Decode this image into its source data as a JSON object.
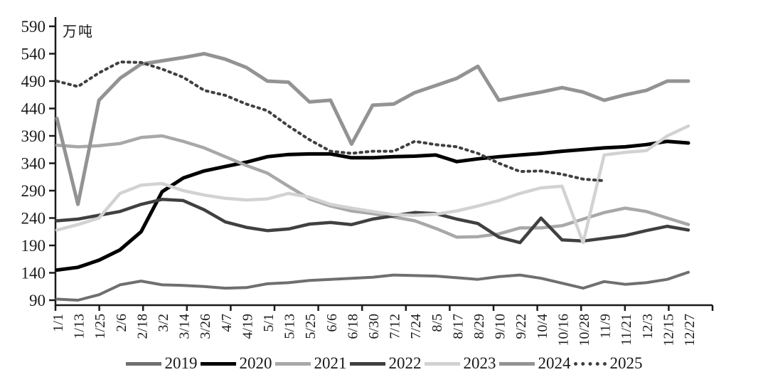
{
  "unit_label": "万吨",
  "chart_data": {
    "type": "line",
    "title": "",
    "ylabel": "万吨",
    "xlabel": "",
    "ylim": [
      90,
      590
    ],
    "yticks": [
      90,
      140,
      190,
      240,
      290,
      340,
      390,
      440,
      490,
      540,
      590
    ],
    "grid": false,
    "legend_position": "bottom",
    "categories": [
      "1/1",
      "1/13",
      "1/25",
      "2/6",
      "2/18",
      "3/2",
      "3/14",
      "3/26",
      "4/7",
      "4/19",
      "5/1",
      "5/13",
      "5/25",
      "6/6",
      "6/18",
      "6/30",
      "7/12",
      "7/24",
      "8/5",
      "8/17",
      "8/29",
      "9/10",
      "9/22",
      "10/4",
      "10/16",
      "10/28",
      "11/9",
      "11/21",
      "12/3",
      "12/15",
      "12/27"
    ],
    "series": [
      {
        "name": "2019",
        "color": "#6f6f6f",
        "width": 4,
        "style": "solid",
        "values": [
          92,
          90,
          100,
          118,
          125,
          118,
          117,
          115,
          112,
          113,
          120,
          122,
          126,
          128,
          130,
          132,
          136,
          135,
          134,
          131,
          128,
          133,
          136,
          130,
          121,
          112,
          124,
          119,
          122,
          128,
          141
        ]
      },
      {
        "name": "2020",
        "color": "#000000",
        "width": 5,
        "style": "solid",
        "values": [
          145,
          150,
          163,
          182,
          215,
          288,
          313,
          326,
          334,
          342,
          352,
          356,
          357,
          357,
          350,
          350,
          352,
          353,
          355,
          343,
          348,
          352,
          355,
          358,
          362,
          365,
          368,
          370,
          374,
          380,
          377
        ]
      },
      {
        "name": "2021",
        "color": "#a8a8a8",
        "width": 4.5,
        "style": "solid",
        "values": [
          373,
          370,
          372,
          376,
          387,
          390,
          380,
          368,
          352,
          336,
          322,
          298,
          275,
          262,
          253,
          248,
          242,
          235,
          221,
          205,
          206,
          211,
          222,
          222,
          226,
          238,
          250,
          258,
          252,
          240,
          228
        ]
      },
      {
        "name": "2022",
        "color": "#404040",
        "width": 4.5,
        "style": "solid",
        "values": [
          235,
          238,
          245,
          252,
          265,
          274,
          272,
          255,
          233,
          223,
          217,
          220,
          229,
          232,
          228,
          238,
          244,
          250,
          248,
          238,
          230,
          205,
          195,
          240,
          200,
          198,
          203,
          208,
          217,
          225,
          218
        ]
      },
      {
        "name": "2023",
        "color": "#d2d2d2",
        "width": 4.5,
        "style": "solid",
        "values": [
          218,
          228,
          240,
          285,
          300,
          303,
          290,
          282,
          276,
          273,
          275,
          285,
          278,
          265,
          258,
          252,
          246,
          245,
          247,
          253,
          262,
          272,
          285,
          295,
          298,
          195,
          355,
          360,
          363,
          390,
          408
        ]
      },
      {
        "name": "2024",
        "color": "#939393",
        "width": 5,
        "style": "solid",
        "values": [
          422,
          265,
          455,
          495,
          521,
          527,
          533,
          540,
          530,
          515,
          490,
          488,
          452,
          455,
          375,
          446,
          448,
          469,
          482,
          495,
          517,
          455,
          463,
          470,
          478,
          470,
          455,
          465,
          473,
          490,
          490
        ]
      },
      {
        "name": "2025",
        "color": "#3f3f3f",
        "width": 4,
        "style": "dotted",
        "values": [
          490,
          480,
          505,
          525,
          524,
          512,
          497,
          473,
          464,
          448,
          436,
          408,
          383,
          362,
          358,
          362,
          362,
          380,
          374,
          370,
          358,
          340,
          325,
          326,
          320,
          311,
          308,
          null,
          null,
          null,
          null
        ]
      }
    ]
  }
}
